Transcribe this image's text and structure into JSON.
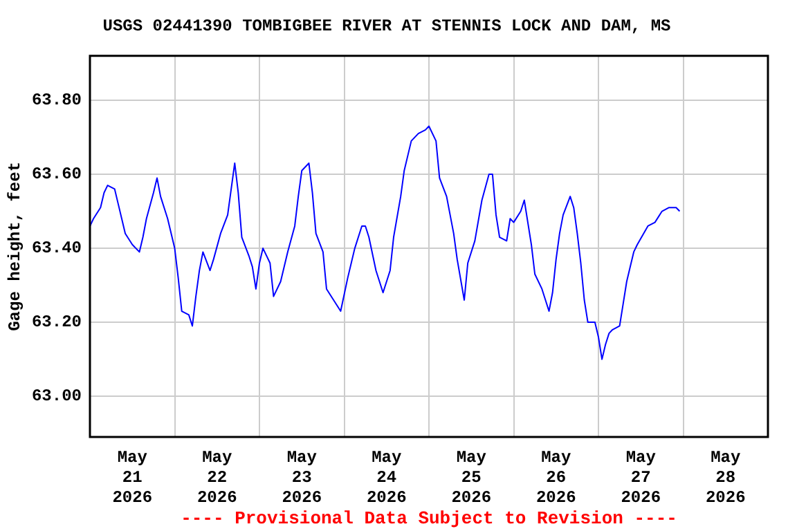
{
  "chart_data": {
    "type": "line",
    "title": "USGS 02441390 TOMBIGBEE RIVER AT STENNIS LOCK AND DAM, MS",
    "ylabel": "Gage height, feet",
    "annotations": [
      "---- Provisional Data Subject to Revision ----"
    ],
    "x": [
      "2026-05-21T00:00",
      "2026-05-21T01:00",
      "2026-05-21T03:00",
      "2026-05-21T04:00",
      "2026-05-21T05:00",
      "2026-05-21T07:00",
      "2026-05-21T08:00",
      "2026-05-21T09:00",
      "2026-05-21T10:00",
      "2026-05-21T12:00",
      "2026-05-21T14:00",
      "2026-05-21T15:00",
      "2026-05-21T16:00",
      "2026-05-21T18:00",
      "2026-05-21T19:00",
      "2026-05-21T20:00",
      "2026-05-21T22:00",
      "2026-05-22T00:00",
      "2026-05-22T01:00",
      "2026-05-22T02:00",
      "2026-05-22T04:00",
      "2026-05-22T05:00",
      "2026-05-22T06:00",
      "2026-05-22T07:00",
      "2026-05-22T08:00",
      "2026-05-22T10:00",
      "2026-05-22T11:00",
      "2026-05-22T13:00",
      "2026-05-22T15:00",
      "2026-05-22T16:00",
      "2026-05-22T17:00",
      "2026-05-22T18:00",
      "2026-05-22T19:00",
      "2026-05-22T21:00",
      "2026-05-22T22:00",
      "2026-05-22T23:00",
      "2026-05-23T00:00",
      "2026-05-23T01:00",
      "2026-05-23T03:00",
      "2026-05-23T04:00",
      "2026-05-23T06:00",
      "2026-05-23T08:00",
      "2026-05-23T10:00",
      "2026-05-23T11:00",
      "2026-05-23T12:00",
      "2026-05-23T14:00",
      "2026-05-23T15:00",
      "2026-05-23T16:00",
      "2026-05-23T18:00",
      "2026-05-23T19:00",
      "2026-05-23T21:00",
      "2026-05-23T23:00",
      "2026-05-24T01:00",
      "2026-05-24T03:00",
      "2026-05-24T05:00",
      "2026-05-24T06:00",
      "2026-05-24T07:00",
      "2026-05-24T09:00",
      "2026-05-24T11:00",
      "2026-05-24T13:00",
      "2026-05-24T14:00",
      "2026-05-24T16:00",
      "2026-05-24T17:00",
      "2026-05-24T19:00",
      "2026-05-24T21:00",
      "2026-05-24T23:00",
      "2026-05-25T00:00",
      "2026-05-25T02:00",
      "2026-05-25T03:00",
      "2026-05-25T05:00",
      "2026-05-25T07:00",
      "2026-05-25T08:00",
      "2026-05-25T10:00",
      "2026-05-25T11:00",
      "2026-05-25T13:00",
      "2026-05-25T15:00",
      "2026-05-25T17:00",
      "2026-05-25T18:00",
      "2026-05-25T19:00",
      "2026-05-25T20:00",
      "2026-05-25T22:00",
      "2026-05-25T23:00",
      "2026-05-26T00:00",
      "2026-05-26T02:00",
      "2026-05-26T03:00",
      "2026-05-26T04:00",
      "2026-05-26T05:00",
      "2026-05-26T06:00",
      "2026-05-26T08:00",
      "2026-05-26T09:00",
      "2026-05-26T10:00",
      "2026-05-26T11:00",
      "2026-05-26T12:00",
      "2026-05-26T13:00",
      "2026-05-26T14:00",
      "2026-05-26T16:00",
      "2026-05-26T17:00",
      "2026-05-26T18:00",
      "2026-05-26T19:00",
      "2026-05-26T20:00",
      "2026-05-26T21:00",
      "2026-05-26T23:00",
      "2026-05-27T00:00",
      "2026-05-27T01:00",
      "2026-05-27T02:00",
      "2026-05-27T03:00",
      "2026-05-27T04:00",
      "2026-05-27T06:00",
      "2026-05-27T07:00",
      "2026-05-27T08:00",
      "2026-05-27T09:00",
      "2026-05-27T10:00",
      "2026-05-27T11:00",
      "2026-05-27T14:00",
      "2026-05-27T16:00",
      "2026-05-27T18:00",
      "2026-05-27T20:00",
      "2026-05-27T22:00",
      "2026-05-27T23:00"
    ],
    "series": [
      {
        "color": "#0000ff",
        "values": [
          63.46,
          63.48,
          63.51,
          63.55,
          63.57,
          63.56,
          63.52,
          63.48,
          63.44,
          63.41,
          63.39,
          63.43,
          63.48,
          63.55,
          63.59,
          63.54,
          63.48,
          63.4,
          63.32,
          63.23,
          63.22,
          63.19,
          63.27,
          63.34,
          63.39,
          63.34,
          63.37,
          63.44,
          63.49,
          63.56,
          63.63,
          63.55,
          63.43,
          63.38,
          63.35,
          63.29,
          63.36,
          63.4,
          63.36,
          63.27,
          63.31,
          63.39,
          63.46,
          63.54,
          63.61,
          63.63,
          63.55,
          63.44,
          63.39,
          63.29,
          63.26,
          63.23,
          63.32,
          63.4,
          63.46,
          63.46,
          63.43,
          63.34,
          63.28,
          63.34,
          63.43,
          63.54,
          63.61,
          63.69,
          63.71,
          63.72,
          63.73,
          63.69,
          63.59,
          63.54,
          63.44,
          63.37,
          63.26,
          63.36,
          63.42,
          63.53,
          63.6,
          63.6,
          63.49,
          63.43,
          63.42,
          63.48,
          63.47,
          63.5,
          63.53,
          63.47,
          63.41,
          63.33,
          63.29,
          63.26,
          63.23,
          63.28,
          63.37,
          63.44,
          63.49,
          63.54,
          63.51,
          63.44,
          63.36,
          63.26,
          63.2,
          63.2,
          63.16,
          63.1,
          63.14,
          63.17,
          63.18,
          63.19,
          63.25,
          63.31,
          63.35,
          63.39,
          63.41,
          63.46,
          63.47,
          63.5,
          63.51,
          63.51,
          63.5
        ]
      }
    ],
    "xlim": [
      "2026-05-21T00:00",
      "2026-05-29T00:00"
    ],
    "xticks": [
      {
        "value": "2026-05-21T12:00",
        "label": "May 21 2026"
      },
      {
        "value": "2026-05-22T00:00",
        "label": null
      },
      {
        "value": "2026-05-22T12:00",
        "label": "May 22 2026"
      },
      {
        "value": "2026-05-23T00:00",
        "label": null
      },
      {
        "value": "2026-05-23T12:00",
        "label": "May 23 2026"
      },
      {
        "value": "2026-05-24T00:00",
        "label": null
      },
      {
        "value": "2026-05-24T12:00",
        "label": "May 24 2026"
      },
      {
        "value": "2026-05-25T00:00",
        "label": null
      },
      {
        "value": "2026-05-25T12:00",
        "label": "May 25 2026"
      },
      {
        "value": "2026-05-26T00:00",
        "label": null
      },
      {
        "value": "2026-05-26T12:00",
        "label": "May 26 2026"
      },
      {
        "value": "2026-05-27T00:00",
        "label": null
      },
      {
        "value": "2026-05-27T12:00",
        "label": "May 27 2026"
      },
      {
        "value": "2026-05-28T00:00",
        "label": null
      },
      {
        "value": "2026-05-28T12:00",
        "label": "May 28 2026"
      }
    ],
    "ylim": [
      62.89,
      63.92
    ],
    "yticks": [
      {
        "value": 63.0,
        "label": "63.00"
      },
      {
        "value": 63.2,
        "label": "63.20"
      },
      {
        "value": 63.4,
        "label": "63.40"
      },
      {
        "value": 63.6,
        "label": "63.60"
      },
      {
        "value": 63.8,
        "label": "63.80"
      }
    ],
    "grid": true,
    "marker": "none",
    "line_style": "solid"
  }
}
